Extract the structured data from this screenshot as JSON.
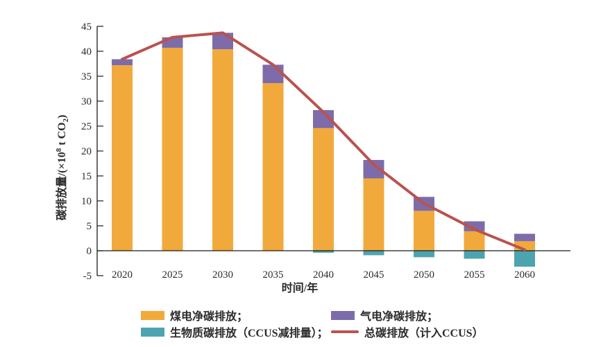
{
  "chart_data": {
    "type": "bar",
    "subtype": "stacked-bar-with-line",
    "categories": [
      "2020",
      "2025",
      "2030",
      "2035",
      "2040",
      "2045",
      "2050",
      "2055",
      "2060"
    ],
    "xlabel": "时间/年",
    "ylabel": "碳排放量/(×10⁸ t CO₂)",
    "ylabel_parts": {
      "prefix": "碳排放量/(×10",
      "sup": "8",
      "mid": " t CO",
      "sub": "2",
      "suffix": ")"
    },
    "ylim": [
      -5,
      45
    ],
    "yticks": [
      -5,
      0,
      5,
      10,
      15,
      20,
      25,
      30,
      35,
      40,
      45
    ],
    "grid": false,
    "legend_position": "bottom",
    "bar_series": [
      {
        "key": "coal",
        "name": "煤电净碳排放",
        "color": "#F2A93C",
        "values": [
          37.2,
          40.7,
          40.4,
          33.6,
          24.6,
          14.5,
          8.0,
          3.9,
          1.9
        ]
      },
      {
        "key": "gas",
        "name": "气电净碳排放",
        "color": "#7D6CA9",
        "values": [
          1.2,
          2.1,
          3.3,
          3.7,
          3.6,
          3.7,
          2.8,
          2.0,
          1.5
        ]
      },
      {
        "key": "bio",
        "name": "生物质碳排放（CCUS减排量）",
        "color": "#4CA4B0",
        "values": [
          0,
          0,
          0,
          0,
          -0.4,
          -0.9,
          -1.3,
          -1.6,
          -3.2
        ]
      }
    ],
    "line_series": {
      "key": "total",
      "name": "总碳排放（计入CCUS）",
      "color": "#B9534F",
      "values": [
        38.4,
        42.8,
        43.7,
        37.3,
        27.8,
        17.3,
        9.5,
        4.3,
        0.2
      ]
    }
  },
  "legend": {
    "items": [
      {
        "key": "coal",
        "type": "bar",
        "color": "#F2A93C",
        "label": "煤电净碳排放；"
      },
      {
        "key": "gas",
        "type": "bar",
        "color": "#7D6CA9",
        "label": "气电净碳排放；"
      },
      {
        "key": "bio",
        "type": "bar",
        "color": "#4CA4B0",
        "label": "生物质碳排放（CCUS减排量）；"
      },
      {
        "key": "total",
        "type": "line",
        "color": "#B9534F",
        "label": "总碳排放（计入CCUS）"
      }
    ]
  },
  "colors": {
    "axis": "#1a1a1a",
    "text": "#2b2b2b",
    "background": "#ffffff"
  }
}
